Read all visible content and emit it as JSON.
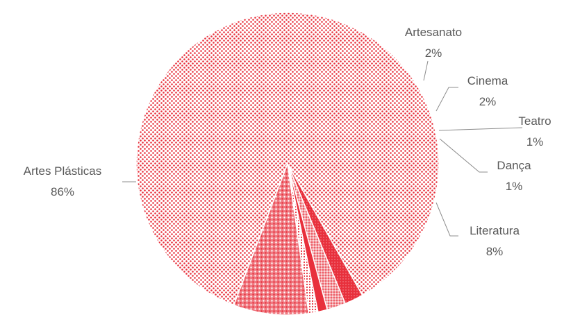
{
  "chart_data": {
    "type": "pie",
    "title": "",
    "categories": [
      "Artes Plásticas",
      "Artesanato",
      "Cinema",
      "Teatro",
      "Dança",
      "Literatura"
    ],
    "values": [
      86,
      2,
      2,
      1,
      1,
      8
    ],
    "value_labels": [
      "86%",
      "2%",
      "2%",
      "1%",
      "1%",
      "8%"
    ],
    "colors": {
      "primary": "#e8303c",
      "light": "#f08c92",
      "background": "#ffffff",
      "label": "#595959",
      "leader": "#8c8c8c"
    },
    "legend": "none",
    "data_labels": "outside-with-leader-lines"
  }
}
